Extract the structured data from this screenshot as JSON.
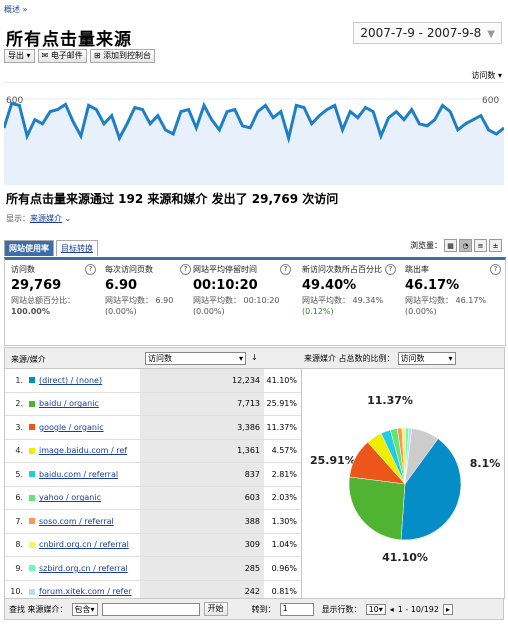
{
  "breadcrumb": "概述 »",
  "page_title": "所有点击量来源",
  "date_range": "2007-7-9 - 2007-9-8",
  "toolbar": {
    "export": "导出",
    "email": "电子邮件",
    "add_dashboard": "添加到控制台"
  },
  "graph_metric_label": "访问数",
  "chart_data": {
    "type": "line",
    "y_ticks": [
      "600",
      "300"
    ],
    "ylim": [
      200,
      700
    ],
    "values": [
      480,
      600,
      590,
      440,
      520,
      500,
      560,
      570,
      595,
      510,
      440,
      590,
      570,
      500,
      540,
      430,
      500,
      580,
      570,
      500,
      540,
      470,
      450,
      560,
      570,
      480,
      590,
      520,
      470,
      560,
      570,
      490,
      480,
      560,
      590,
      530,
      560,
      430,
      590,
      580,
      500,
      540,
      570,
      590,
      470,
      560,
      530,
      580,
      560,
      440,
      530,
      560,
      520,
      570,
      500,
      490,
      520,
      590,
      560,
      470,
      500,
      520,
      540,
      470,
      450,
      480
    ]
  },
  "headline": "所有点击量来源通过 192 来源和媒介 发出了 29,769 次访问",
  "show": {
    "label": "显示：",
    "value": "来源媒介"
  },
  "tabs": [
    "网站使用率",
    "目标转换"
  ],
  "view_label": "浏览量：",
  "metrics": [
    {
      "label": "访问数",
      "value": "29,769",
      "sub1": "网站总额百分比：",
      "sub2": "100.00%"
    },
    {
      "label": "每次访问页数",
      "value": "6.90",
      "sub1": "网站平均数：   6.90",
      "sub2": "(0.00%)"
    },
    {
      "label": "网站平均停留时间",
      "value": "00:10:20",
      "sub1": "网站平均数：   00:10:20",
      "sub2": "(0.00%)"
    },
    {
      "label": "新访问次数所占百分比",
      "value": "49.40%",
      "sub1": "网站平均数：   49.34%",
      "sub2": "(0.12%)"
    },
    {
      "label": "跳出率",
      "value": "46.17%",
      "sub1": "网站平均数：   46.17%",
      "sub2": "(0.00%)"
    }
  ],
  "table": {
    "col_source": "来源/媒介",
    "col_metric": "访问数",
    "rows": [
      {
        "num": "1.",
        "name": "(direct) / (none)",
        "visits": "12,234",
        "pct": "41.10%",
        "color": "#058dc7"
      },
      {
        "num": "2.",
        "name": "baidu / organic",
        "visits": "7,713",
        "pct": "25.91%",
        "color": "#50b432"
      },
      {
        "num": "3.",
        "name": "google / organic",
        "visits": "3,386",
        "pct": "11.37%",
        "color": "#ed561b"
      },
      {
        "num": "4.",
        "name": "image.baidu.com / ref",
        "visits": "1,361",
        "pct": "4.57%",
        "color": "#edef00"
      },
      {
        "num": "5.",
        "name": "baidu.com / referral",
        "visits": "837",
        "pct": "2.81%",
        "color": "#24cbe5"
      },
      {
        "num": "6.",
        "name": "yahoo / organic",
        "visits": "603",
        "pct": "2.03%",
        "color": "#64e572"
      },
      {
        "num": "7.",
        "name": "soso.com / referral",
        "visits": "388",
        "pct": "1.30%",
        "color": "#ff9655"
      },
      {
        "num": "8.",
        "name": "cnbird.org.cn / referral",
        "visits": "309",
        "pct": "1.04%",
        "color": "#fff263"
      },
      {
        "num": "9.",
        "name": "szbird.org.cn / referral",
        "visits": "285",
        "pct": "0.96%",
        "color": "#6af9c4"
      },
      {
        "num": "10.",
        "name": "forum.xitek.com / refer",
        "visits": "242",
        "pct": "0.81%",
        "color": "#b2deff"
      }
    ]
  },
  "pie": {
    "header_label": "来源媒介 占总数的比例：",
    "select": "访问数",
    "slices": [
      {
        "value": 41.1,
        "color": "#058dc7",
        "label": "41.10%"
      },
      {
        "value": 25.91,
        "color": "#50b432",
        "label": "25.91%"
      },
      {
        "value": 11.37,
        "color": "#ed561b",
        "label": "11.37%"
      },
      {
        "value": 4.57,
        "color": "#edef00",
        "label": ""
      },
      {
        "value": 2.81,
        "color": "#24cbe5",
        "label": ""
      },
      {
        "value": 2.03,
        "color": "#64e572",
        "label": ""
      },
      {
        "value": 1.3,
        "color": "#ff9655",
        "label": ""
      },
      {
        "value": 1.04,
        "color": "#fff263",
        "label": ""
      },
      {
        "value": 0.96,
        "color": "#6af9c4",
        "label": ""
      },
      {
        "value": 0.81,
        "color": "#b2deff",
        "label": ""
      },
      {
        "value": 8.1,
        "color": "#cccccc",
        "label": "8.1%"
      }
    ]
  },
  "footer": {
    "find_label": "查找 来源媒介：",
    "find_op": "包含",
    "go": "开始",
    "goto_label": "转到：",
    "goto_value": "1",
    "rows_label": "显示行数：",
    "rows_value": "10",
    "range": "1 - 10/192"
  }
}
